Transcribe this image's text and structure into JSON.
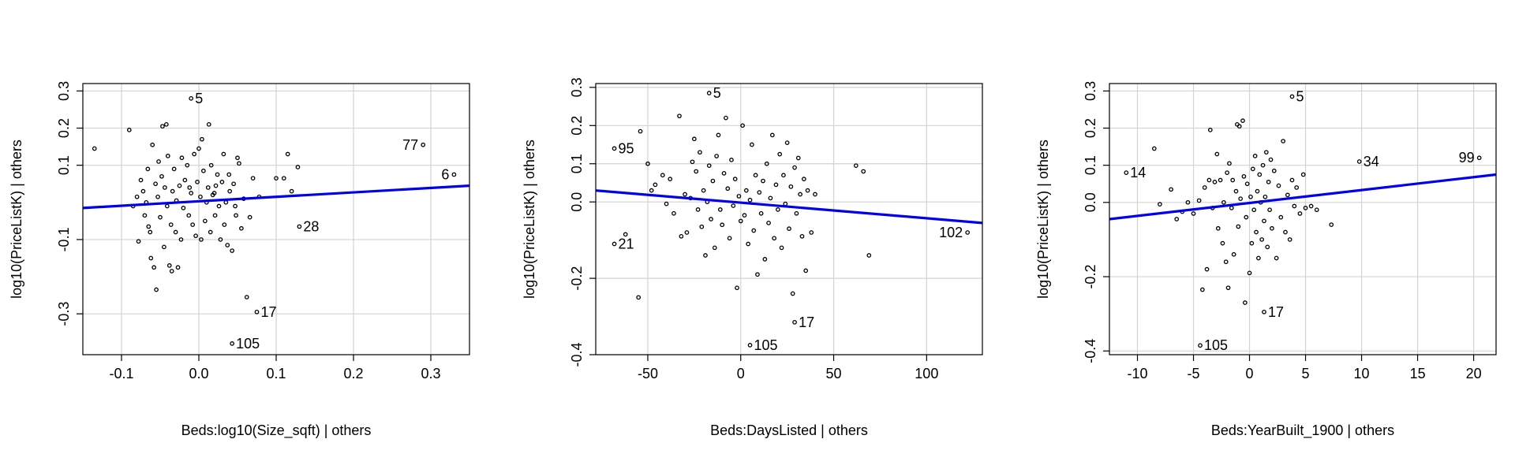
{
  "colors": {
    "fit_line": "#0000ee",
    "grid": "#d3d3d3",
    "points": "#000000"
  },
  "chart_data": [
    {
      "type": "scatter",
      "xlabel": "Beds:log10(Size_sqft) | others",
      "ylabel": "log10(PriceListK)  | others",
      "xlim": [
        -0.15,
        0.35
      ],
      "ylim": [
        -0.41,
        0.32
      ],
      "x_ticks": [
        -0.1,
        0.0,
        0.1,
        0.2,
        0.3
      ],
      "x_tick_labels": [
        "-0.1",
        "0.0",
        "0.1",
        "0.2",
        "0.3"
      ],
      "y_ticks": [
        -0.3,
        -0.1,
        0.1,
        0.2,
        0.3
      ],
      "y_tick_labels": [
        "-0.3",
        "-0.1",
        "0.1",
        "0.2",
        "0.3"
      ],
      "grid": true,
      "fit_line": {
        "x": [
          -0.15,
          0.35
        ],
        "y": [
          -0.015,
          0.045
        ]
      },
      "labeled_points": [
        {
          "label": "5",
          "x": -0.01,
          "y": 0.28
        },
        {
          "label": "77",
          "x": 0.29,
          "y": 0.155
        },
        {
          "label": "6",
          "x": 0.33,
          "y": 0.075
        },
        {
          "label": "28",
          "x": 0.13,
          "y": -0.065
        },
        {
          "label": "17",
          "x": 0.075,
          "y": -0.295
        },
        {
          "label": "105",
          "x": 0.043,
          "y": -0.38
        }
      ],
      "points": [
        [
          -0.135,
          0.145
        ],
        [
          -0.09,
          0.195
        ],
        [
          -0.085,
          -0.01
        ],
        [
          -0.08,
          0.015
        ],
        [
          -0.078,
          -0.105
        ],
        [
          -0.075,
          0.06
        ],
        [
          -0.072,
          0.03
        ],
        [
          -0.07,
          -0.035
        ],
        [
          -0.068,
          0.0
        ],
        [
          -0.066,
          0.09
        ],
        [
          -0.065,
          -0.065
        ],
        [
          -0.063,
          -0.08
        ],
        [
          -0.062,
          -0.15
        ],
        [
          -0.06,
          0.155
        ],
        [
          -0.058,
          -0.175
        ],
        [
          -0.056,
          0.05
        ],
        [
          -0.055,
          -0.235
        ],
        [
          -0.053,
          0.015
        ],
        [
          -0.052,
          0.11
        ],
        [
          -0.05,
          -0.04
        ],
        [
          -0.048,
          0.07
        ],
        [
          -0.047,
          0.205
        ],
        [
          -0.045,
          -0.12
        ],
        [
          -0.044,
          0.04
        ],
        [
          -0.042,
          0.21
        ],
        [
          -0.041,
          -0.01
        ],
        [
          -0.04,
          0.125
        ],
        [
          -0.038,
          -0.17
        ],
        [
          -0.036,
          -0.06
        ],
        [
          -0.035,
          -0.185
        ],
        [
          -0.034,
          0.03
        ],
        [
          -0.032,
          0.09
        ],
        [
          -0.03,
          -0.08
        ],
        [
          -0.029,
          0.005
        ],
        [
          -0.027,
          -0.175
        ],
        [
          -0.025,
          0.045
        ],
        [
          -0.023,
          -0.1
        ],
        [
          -0.022,
          0.12
        ],
        [
          -0.02,
          -0.015
        ],
        [
          -0.018,
          0.06
        ],
        [
          -0.015,
          0.1
        ],
        [
          -0.013,
          -0.035
        ],
        [
          -0.012,
          0.04
        ],
        [
          -0.01,
          0.025
        ],
        [
          -0.008,
          -0.06
        ],
        [
          -0.006,
          0.13
        ],
        [
          -0.004,
          -0.09
        ],
        [
          -0.002,
          0.055
        ],
        [
          0.0,
          0.145
        ],
        [
          0.002,
          0.015
        ],
        [
          0.003,
          -0.1
        ],
        [
          0.004,
          0.17
        ],
        [
          0.006,
          0.085
        ],
        [
          0.008,
          -0.05
        ],
        [
          0.01,
          0.0
        ],
        [
          0.012,
          0.04
        ],
        [
          0.013,
          0.21
        ],
        [
          0.015,
          -0.08
        ],
        [
          0.016,
          0.1
        ],
        [
          0.018,
          0.02
        ],
        [
          0.02,
          0.025
        ],
        [
          0.021,
          -0.035
        ],
        [
          0.022,
          0.045
        ],
        [
          0.024,
          0.075
        ],
        [
          0.026,
          -0.01
        ],
        [
          0.028,
          -0.1
        ],
        [
          0.03,
          0.055
        ],
        [
          0.032,
          0.13
        ],
        [
          0.033,
          -0.06
        ],
        [
          0.035,
          0.0
        ],
        [
          0.037,
          -0.115
        ],
        [
          0.039,
          0.075
        ],
        [
          0.04,
          0.03
        ],
        [
          0.043,
          -0.13
        ],
        [
          0.045,
          0.05
        ],
        [
          0.047,
          -0.01
        ],
        [
          0.048,
          -0.035
        ],
        [
          0.05,
          0.12
        ],
        [
          0.052,
          0.105
        ],
        [
          0.055,
          -0.07
        ],
        [
          0.058,
          0.01
        ],
        [
          0.062,
          -0.255
        ],
        [
          0.066,
          -0.04
        ],
        [
          0.07,
          0.065
        ],
        [
          0.078,
          0.015
        ],
        [
          0.1,
          0.065
        ],
        [
          0.11,
          0.065
        ],
        [
          0.115,
          0.13
        ],
        [
          0.12,
          0.03
        ],
        [
          0.128,
          0.095
        ]
      ]
    },
    {
      "type": "scatter",
      "xlabel": "Beds:DaysListed | others",
      "ylabel": "log10(PriceListK)  | others",
      "xlim": [
        -78,
        130
      ],
      "ylim": [
        -0.4,
        0.31
      ],
      "x_ticks": [
        -50,
        0,
        50,
        100
      ],
      "x_tick_labels": [
        "-50",
        "0",
        "50",
        "100"
      ],
      "y_ticks": [
        -0.4,
        -0.2,
        0.0,
        0.1,
        0.2,
        0.3
      ],
      "y_tick_labels": [
        "-0.4",
        "-0.2",
        "0.0",
        "0.1",
        "0.2",
        "0.3"
      ],
      "grid": true,
      "fit_line": {
        "x": [
          -78,
          130
        ],
        "y": [
          0.03,
          -0.055
        ]
      },
      "labeled_points": [
        {
          "label": "5",
          "x": -17,
          "y": 0.285
        },
        {
          "label": "95",
          "x": -68,
          "y": 0.14
        },
        {
          "label": "21",
          "x": -68,
          "y": -0.11
        },
        {
          "label": "102",
          "x": 122,
          "y": -0.08
        },
        {
          "label": "17",
          "x": 29,
          "y": -0.315
        },
        {
          "label": "105",
          "x": 5,
          "y": -0.375
        }
      ],
      "points": [
        [
          -62,
          -0.085
        ],
        [
          -55,
          -0.25
        ],
        [
          -54,
          0.185
        ],
        [
          -50,
          0.1
        ],
        [
          -48,
          0.03
        ],
        [
          -46,
          0.045
        ],
        [
          -42,
          0.07
        ],
        [
          -40,
          -0.005
        ],
        [
          -38,
          0.06
        ],
        [
          -36,
          -0.03
        ],
        [
          -33,
          0.225
        ],
        [
          -32,
          -0.09
        ],
        [
          -30,
          0.02
        ],
        [
          -29,
          -0.08
        ],
        [
          -27,
          0.01
        ],
        [
          -26,
          0.105
        ],
        [
          -25,
          0.165
        ],
        [
          -24,
          0.08
        ],
        [
          -23,
          -0.02
        ],
        [
          -22,
          0.13
        ],
        [
          -21,
          -0.065
        ],
        [
          -20,
          0.03
        ],
        [
          -19,
          -0.14
        ],
        [
          -18,
          0.0
        ],
        [
          -17,
          0.095
        ],
        [
          -16,
          -0.045
        ],
        [
          -15,
          0.055
        ],
        [
          -14,
          -0.12
        ],
        [
          -13,
          0.12
        ],
        [
          -12,
          0.175
        ],
        [
          -11,
          -0.02
        ],
        [
          -10,
          -0.06
        ],
        [
          -9,
          0.075
        ],
        [
          -8,
          0.22
        ],
        [
          -7,
          0.035
        ],
        [
          -6,
          -0.095
        ],
        [
          -5,
          0.11
        ],
        [
          -4,
          -0.01
        ],
        [
          -3,
          0.06
        ],
        [
          -2,
          -0.225
        ],
        [
          -1,
          0.015
        ],
        [
          0,
          -0.05
        ],
        [
          1,
          0.2
        ],
        [
          2,
          -0.035
        ],
        [
          3,
          0.03
        ],
        [
          4,
          -0.11
        ],
        [
          5,
          0.005
        ],
        [
          6,
          0.15
        ],
        [
          7,
          -0.075
        ],
        [
          8,
          0.07
        ],
        [
          9,
          -0.19
        ],
        [
          10,
          0.025
        ],
        [
          11,
          -0.03
        ],
        [
          12,
          0.055
        ],
        [
          13,
          -0.15
        ],
        [
          14,
          0.1
        ],
        [
          15,
          -0.055
        ],
        [
          16,
          0.01
        ],
        [
          17,
          0.175
        ],
        [
          18,
          -0.095
        ],
        [
          19,
          0.045
        ],
        [
          20,
          -0.02
        ],
        [
          21,
          0.125
        ],
        [
          22,
          -0.12
        ],
        [
          23,
          0.07
        ],
        [
          24,
          -0.005
        ],
        [
          25,
          0.155
        ],
        [
          26,
          -0.07
        ],
        [
          27,
          0.04
        ],
        [
          28,
          -0.24
        ],
        [
          29,
          0.09
        ],
        [
          30,
          -0.03
        ],
        [
          31,
          0.115
        ],
        [
          32,
          0.02
        ],
        [
          33,
          -0.09
        ],
        [
          34,
          0.06
        ],
        [
          35,
          -0.18
        ],
        [
          36,
          0.03
        ],
        [
          38,
          -0.08
        ],
        [
          40,
          0.02
        ],
        [
          62,
          0.095
        ],
        [
          66,
          0.08
        ],
        [
          69,
          -0.14
        ]
      ]
    },
    {
      "type": "scatter",
      "xlabel": "Beds:YearBuilt_1900 | others",
      "ylabel": "log10(PriceListK)  | others",
      "xlim": [
        -12.5,
        22
      ],
      "ylim": [
        -0.41,
        0.32
      ],
      "x_ticks": [
        -10,
        -5,
        0,
        5,
        10,
        15,
        20
      ],
      "x_tick_labels": [
        "-10",
        "-5",
        "0",
        "5",
        "10",
        "15",
        "20"
      ],
      "y_ticks": [
        -0.4,
        -0.2,
        0.0,
        0.1,
        0.2,
        0.3
      ],
      "y_tick_labels": [
        "-0.4",
        "-0.2",
        "0.0",
        "0.1",
        "0.2",
        "0.3"
      ],
      "grid": true,
      "fit_line": {
        "x": [
          -12.5,
          22
        ],
        "y": [
          -0.045,
          0.075
        ]
      },
      "labeled_points": [
        {
          "label": "5",
          "x": 3.8,
          "y": 0.285
        },
        {
          "label": "14",
          "x": -11,
          "y": 0.08
        },
        {
          "label": "34",
          "x": 9.8,
          "y": 0.11
        },
        {
          "label": "99",
          "x": 20.5,
          "y": 0.12
        },
        {
          "label": "17",
          "x": 1.3,
          "y": -0.295
        },
        {
          "label": "105",
          "x": -4.4,
          "y": -0.385
        }
      ],
      "points": [
        [
          -8.5,
          0.145
        ],
        [
          -8.0,
          -0.005
        ],
        [
          -7.0,
          0.035
        ],
        [
          -6.5,
          -0.045
        ],
        [
          -6.0,
          -0.025
        ],
        [
          -5.5,
          0.0
        ],
        [
          -5.0,
          -0.03
        ],
        [
          -4.5,
          0.005
        ],
        [
          -4.2,
          -0.235
        ],
        [
          -4.0,
          0.04
        ],
        [
          -3.8,
          -0.18
        ],
        [
          -3.6,
          0.06
        ],
        [
          -3.5,
          0.195
        ],
        [
          -3.3,
          -0.015
        ],
        [
          -3.1,
          0.055
        ],
        [
          -2.9,
          0.13
        ],
        [
          -2.8,
          -0.07
        ],
        [
          -2.6,
          0.06
        ],
        [
          -2.4,
          -0.11
        ],
        [
          -2.3,
          0.0
        ],
        [
          -2.1,
          -0.16
        ],
        [
          -2.0,
          0.08
        ],
        [
          -1.9,
          -0.23
        ],
        [
          -1.8,
          0.105
        ],
        [
          -1.6,
          -0.015
        ],
        [
          -1.5,
          0.06
        ],
        [
          -1.4,
          -0.14
        ],
        [
          -1.2,
          0.03
        ],
        [
          -1.1,
          0.21
        ],
        [
          -1.0,
          -0.065
        ],
        [
          -0.9,
          0.205
        ],
        [
          -0.8,
          0.01
        ],
        [
          -0.6,
          0.22
        ],
        [
          -0.5,
          0.07
        ],
        [
          -0.4,
          -0.27
        ],
        [
          -0.3,
          -0.04
        ],
        [
          -0.2,
          0.05
        ],
        [
          0.0,
          -0.19
        ],
        [
          0.1,
          0.015
        ],
        [
          0.2,
          -0.11
        ],
        [
          0.3,
          0.09
        ],
        [
          0.4,
          -0.02
        ],
        [
          0.5,
          0.125
        ],
        [
          0.6,
          -0.08
        ],
        [
          0.7,
          0.03
        ],
        [
          0.8,
          -0.15
        ],
        [
          0.9,
          0.075
        ],
        [
          1.0,
          0.0
        ],
        [
          1.1,
          -0.1
        ],
        [
          1.2,
          0.1
        ],
        [
          1.3,
          -0.05
        ],
        [
          1.4,
          0.015
        ],
        [
          1.5,
          0.135
        ],
        [
          1.6,
          -0.12
        ],
        [
          1.7,
          0.055
        ],
        [
          1.8,
          -0.02
        ],
        [
          1.9,
          0.115
        ],
        [
          2.0,
          -0.07
        ],
        [
          2.2,
          0.085
        ],
        [
          2.4,
          -0.15
        ],
        [
          2.6,
          0.045
        ],
        [
          2.8,
          -0.04
        ],
        [
          3.0,
          0.165
        ],
        [
          3.2,
          -0.08
        ],
        [
          3.4,
          0.02
        ],
        [
          3.6,
          -0.1
        ],
        [
          3.8,
          0.06
        ],
        [
          4.0,
          -0.01
        ],
        [
          4.2,
          0.04
        ],
        [
          4.5,
          -0.03
        ],
        [
          4.8,
          0.075
        ],
        [
          5.0,
          -0.015
        ],
        [
          5.5,
          -0.01
        ],
        [
          6.0,
          -0.02
        ],
        [
          7.3,
          -0.06
        ]
      ]
    }
  ]
}
